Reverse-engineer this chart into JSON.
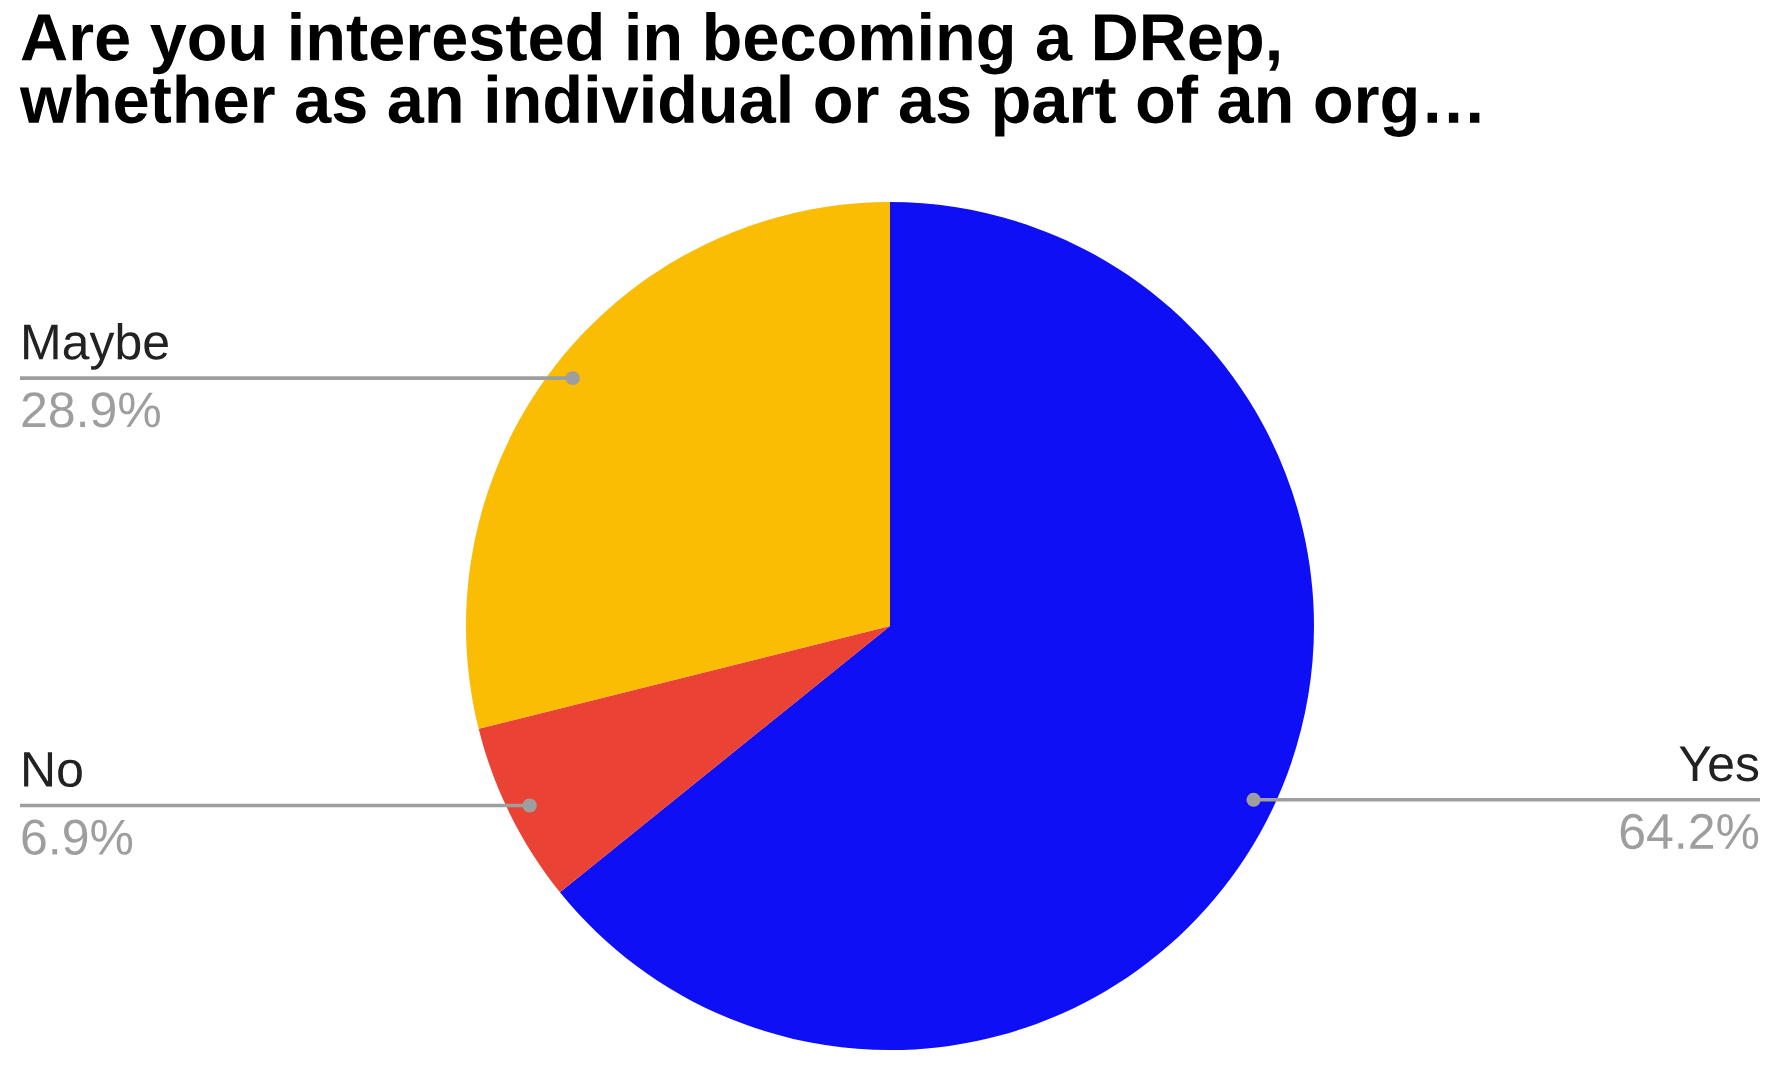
{
  "chart_data": {
    "type": "pie",
    "title": "Are you interested in becoming a DRep,\nwhether as an individual or as part of an org…",
    "categories": [
      "Yes",
      "No",
      "Maybe"
    ],
    "values": [
      64.2,
      6.9,
      28.9
    ],
    "value_labels": [
      "64.2%",
      "6.9%",
      "28.9%"
    ],
    "colors": [
      "#0f0ff5",
      "#ea4335",
      "#fbbc04"
    ],
    "legend": false
  }
}
